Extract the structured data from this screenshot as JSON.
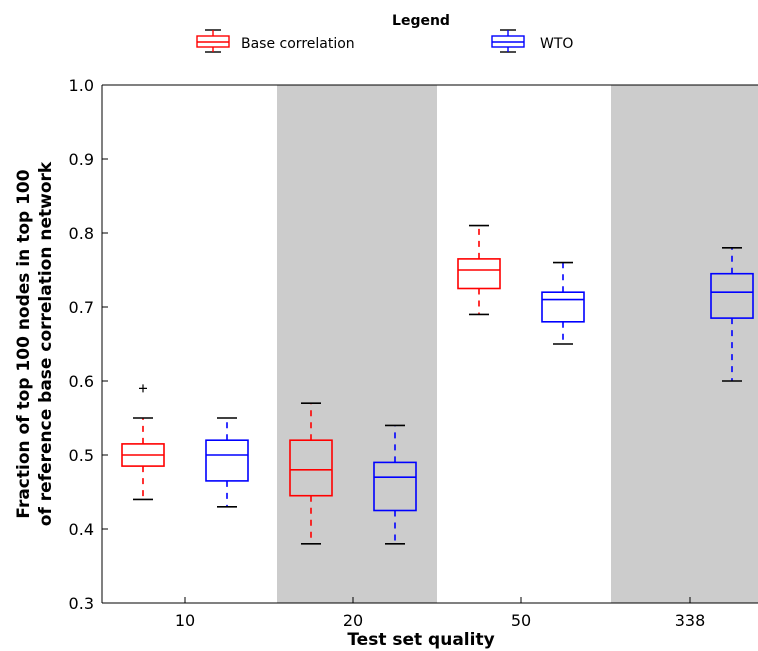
{
  "chart_data": {
    "type": "boxplot",
    "legend": {
      "title": "Legend",
      "placement": "top-center",
      "entries": [
        {
          "name": "Base correlation",
          "color": "#ff0000"
        },
        {
          "name": "WTO",
          "color": "#0000ff"
        }
      ]
    },
    "ylabel_lines": [
      "Fraction of top 100 nodes in top 100",
      "of reference base correlation network"
    ],
    "xlabel": "Test set quality",
    "ylim": [
      0.3,
      1.0
    ],
    "yticks": [
      "0.3",
      "0.4",
      "0.5",
      "0.6",
      "0.7",
      "0.8",
      "0.9",
      "1.0"
    ],
    "categories": [
      "10",
      "20",
      "50",
      "338"
    ],
    "shaded_categories": [
      "20",
      "338"
    ],
    "shade_color": "#cccccc",
    "series": [
      {
        "name": "Base correlation",
        "color": "#ff0000",
        "boxes": [
          {
            "category": "10",
            "whisker_low": 0.44,
            "q1": 0.485,
            "median": 0.5,
            "q3": 0.515,
            "whisker_high": 0.55,
            "outliers": [
              0.59
            ]
          },
          {
            "category": "20",
            "whisker_low": 0.38,
            "q1": 0.445,
            "median": 0.48,
            "q3": 0.52,
            "whisker_high": 0.57,
            "outliers": []
          },
          {
            "category": "50",
            "whisker_low": 0.69,
            "q1": 0.725,
            "median": 0.75,
            "q3": 0.765,
            "whisker_high": 0.81,
            "outliers": []
          }
        ]
      },
      {
        "name": "WTO",
        "color": "#0000ff",
        "boxes": [
          {
            "category": "10",
            "whisker_low": 0.43,
            "q1": 0.465,
            "median": 0.5,
            "q3": 0.52,
            "whisker_high": 0.55,
            "outliers": []
          },
          {
            "category": "20",
            "whisker_low": 0.38,
            "q1": 0.425,
            "median": 0.47,
            "q3": 0.49,
            "whisker_high": 0.54,
            "outliers": []
          },
          {
            "category": "50",
            "whisker_low": 0.65,
            "q1": 0.68,
            "median": 0.71,
            "q3": 0.72,
            "whisker_high": 0.76,
            "outliers": []
          },
          {
            "category": "338",
            "whisker_low": 0.6,
            "q1": 0.685,
            "median": 0.72,
            "q3": 0.745,
            "whisker_high": 0.78,
            "outliers": []
          }
        ]
      }
    ],
    "grid": false
  }
}
